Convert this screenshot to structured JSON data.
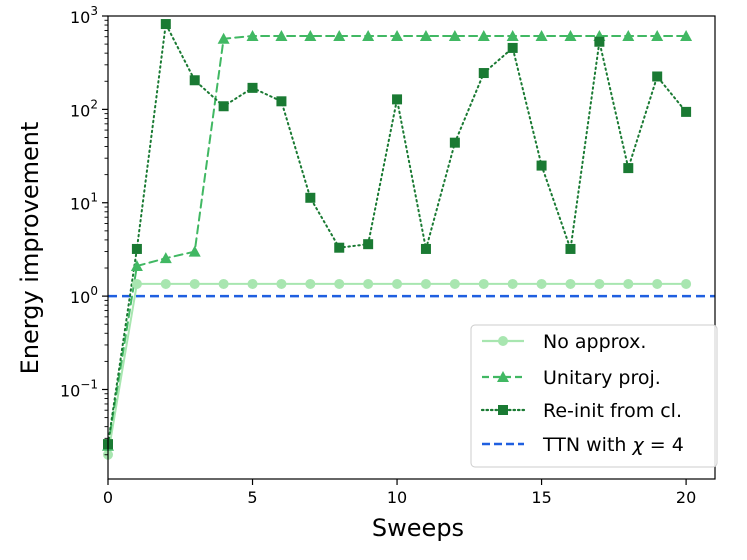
{
  "chart_data": {
    "type": "line",
    "title": "",
    "xlabel": "Sweeps",
    "ylabel": "Energy improvement",
    "xlim": [
      0,
      21
    ],
    "ylim": [
      0.011,
      1000
    ],
    "yscale": "log",
    "x_ticks": [
      0,
      5,
      10,
      15,
      20
    ],
    "x_tick_labels": [
      "0",
      "5",
      "10",
      "15",
      "20"
    ],
    "y_ticks": [
      {
        "value": 0.1,
        "base": "10",
        "exp": "−1"
      },
      {
        "value": 1,
        "base": "10",
        "exp": "0"
      },
      {
        "value": 10,
        "base": "10",
        "exp": "1"
      },
      {
        "value": 100,
        "base": "10",
        "exp": "2"
      },
      {
        "value": 1000,
        "base": "10",
        "exp": "3"
      }
    ],
    "legend_position": "lower-right",
    "series": [
      {
        "name": "No approx.",
        "color": "#a8e6b0",
        "linestyle": "solid",
        "marker": "circle",
        "x": [
          0,
          1,
          2,
          3,
          4,
          5,
          6,
          7,
          8,
          9,
          10,
          11,
          12,
          13,
          14,
          15,
          16,
          17,
          18,
          19,
          20
        ],
        "y": [
          0.02,
          1.35,
          1.35,
          1.35,
          1.35,
          1.35,
          1.35,
          1.35,
          1.35,
          1.35,
          1.35,
          1.35,
          1.35,
          1.35,
          1.35,
          1.35,
          1.35,
          1.35,
          1.35,
          1.35,
          1.35
        ]
      },
      {
        "name": "Unitary proj.",
        "color": "#41b863",
        "linestyle": "dashed",
        "marker": "triangle",
        "x": [
          0,
          1,
          2,
          3,
          4,
          5,
          6,
          7,
          8,
          9,
          10,
          11,
          12,
          13,
          14,
          15,
          16,
          17,
          18,
          19,
          20
        ],
        "y": [
          0.025,
          2.1,
          2.55,
          3.0,
          570,
          610,
          610,
          610,
          610,
          610,
          610,
          610,
          610,
          610,
          610,
          610,
          610,
          610,
          610,
          610,
          610
        ]
      },
      {
        "name": "Re-init from cl.",
        "color": "#1a7a33",
        "linestyle": "dotted",
        "marker": "square",
        "x": [
          0,
          1,
          2,
          3,
          4,
          5,
          6,
          7,
          8,
          9,
          10,
          11,
          12,
          13,
          14,
          15,
          16,
          17,
          18,
          19,
          20
        ],
        "y": [
          0.026,
          3.2,
          820,
          205,
          108,
          170,
          122,
          11.3,
          3.3,
          3.6,
          128,
          3.2,
          44,
          245,
          455,
          25,
          3.2,
          530,
          23.5,
          225,
          94
        ]
      }
    ],
    "reference_line": {
      "name": "TTN with χ = 4",
      "label_prefix": "TTN with ",
      "label_symbol": "χ",
      "label_suffix": " = 4",
      "y": 1,
      "color": "#1f5fe0",
      "linestyle": "dashed"
    }
  }
}
